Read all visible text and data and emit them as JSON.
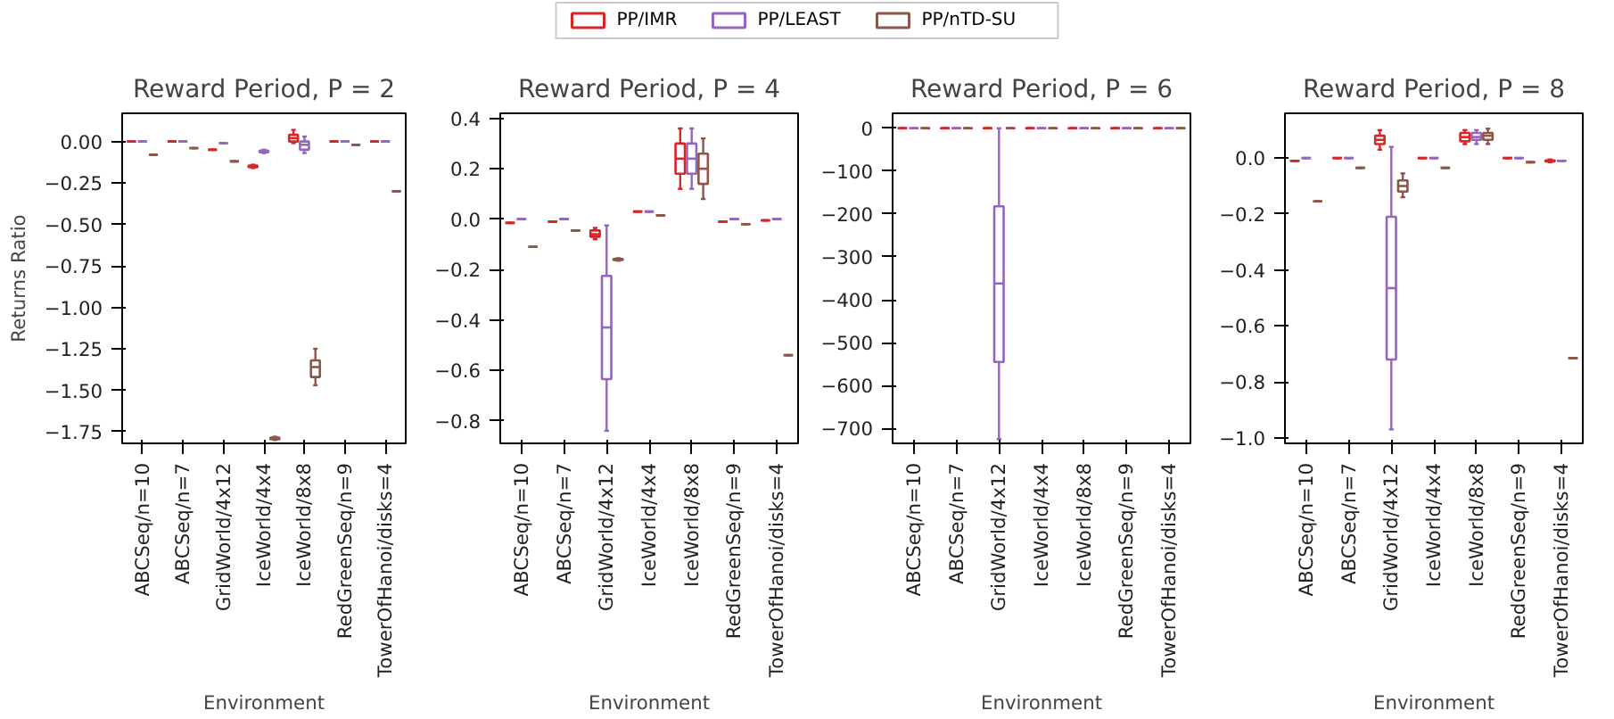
{
  "chart_data": [
    {
      "type": "box",
      "title": "Reward Period, P = 2",
      "xlabel": "Environment",
      "ylabel": "Returns Ratio",
      "legend": "top",
      "categories": [
        "ABCSeq/n=10",
        "ABCSeq/n=7",
        "GridWorld/4x12",
        "IceWorld/4x4",
        "IceWorld/8x8",
        "RedGreenSeq/n=9",
        "TowerOfHanoi/disks=4"
      ],
      "ylim": [
        -1.82,
        0.17
      ],
      "yticks": [
        {
          "value": 0,
          "label": "0.00"
        },
        {
          "value": -0.25,
          "label": "−0.25"
        },
        {
          "value": -0.5,
          "label": "−0.50"
        },
        {
          "value": -0.75,
          "label": "−0.75"
        },
        {
          "value": -1,
          "label": "−1.00"
        },
        {
          "value": -1.25,
          "label": "−1.25"
        },
        {
          "value": -1.5,
          "label": "−1.50"
        },
        {
          "value": -1.75,
          "label": "−1.75"
        }
      ],
      "series": [
        {
          "name": "PP/IMR",
          "color": "#d62728",
          "boxes": [
            {
              "low": 0,
              "q1": 0,
              "median": 0,
              "q3": 0,
              "high": 0
            },
            {
              "low": 0,
              "q1": 0,
              "median": 0,
              "q3": 0,
              "high": 0
            },
            {
              "low": -0.05,
              "q1": -0.05,
              "median": -0.05,
              "q3": -0.05,
              "high": -0.05
            },
            {
              "low": -0.16,
              "q1": -0.155,
              "median": -0.15,
              "q3": -0.145,
              "high": -0.14
            },
            {
              "low": -0.01,
              "q1": 0,
              "median": 0.02,
              "q3": 0.04,
              "high": 0.07
            },
            {
              "low": 0,
              "q1": 0,
              "median": 0,
              "q3": 0,
              "high": 0
            },
            {
              "low": 0,
              "q1": 0,
              "median": 0,
              "q3": 0,
              "high": 0
            }
          ]
        },
        {
          "name": "PP/LEAST",
          "color": "#9467bd",
          "boxes": [
            {
              "low": 0,
              "q1": 0,
              "median": 0,
              "q3": 0,
              "high": 0
            },
            {
              "low": 0,
              "q1": 0,
              "median": 0,
              "q3": 0,
              "high": 0
            },
            {
              "low": -0.01,
              "q1": -0.01,
              "median": -0.01,
              "q3": -0.01,
              "high": -0.01
            },
            {
              "low": -0.07,
              "q1": -0.065,
              "median": -0.06,
              "q3": -0.055,
              "high": -0.05
            },
            {
              "low": -0.07,
              "q1": -0.05,
              "median": -0.02,
              "q3": 0,
              "high": 0.03
            },
            {
              "low": 0,
              "q1": 0,
              "median": 0,
              "q3": 0,
              "high": 0
            },
            {
              "low": 0,
              "q1": 0,
              "median": 0,
              "q3": 0,
              "high": 0
            }
          ]
        },
        {
          "name": "PP/nTD-SU",
          "color": "#8c564b",
          "boxes": [
            {
              "low": -0.08,
              "q1": -0.08,
              "median": -0.08,
              "q3": -0.08,
              "high": -0.08
            },
            {
              "low": -0.04,
              "q1": -0.04,
              "median": -0.04,
              "q3": -0.04,
              "high": -0.04
            },
            {
              "low": -0.12,
              "q1": -0.12,
              "median": -0.12,
              "q3": -0.12,
              "high": -0.12
            },
            {
              "low": -1.8,
              "q1": -1.795,
              "median": -1.79,
              "q3": -1.785,
              "high": -1.78
            },
            {
              "low": -1.47,
              "q1": -1.42,
              "median": -1.36,
              "q3": -1.32,
              "high": -1.25
            },
            {
              "low": -0.02,
              "q1": -0.02,
              "median": -0.02,
              "q3": -0.02,
              "high": -0.02
            },
            {
              "low": -0.3,
              "q1": -0.3,
              "median": -0.3,
              "q3": -0.3,
              "high": -0.3
            }
          ]
        }
      ]
    },
    {
      "type": "box",
      "title": "Reward Period, P = 4",
      "xlabel": "Environment",
      "categories": [
        "ABCSeq/n=10",
        "ABCSeq/n=7",
        "GridWorld/4x12",
        "IceWorld/4x4",
        "IceWorld/8x8",
        "RedGreenSeq/n=9",
        "TowerOfHanoi/disks=4"
      ],
      "ylim": [
        -0.89,
        0.42
      ],
      "yticks": [
        {
          "value": 0.4,
          "label": "0.4"
        },
        {
          "value": 0.2,
          "label": "0.2"
        },
        {
          "value": 0,
          "label": "0.0"
        },
        {
          "value": -0.2,
          "label": "−0.2"
        },
        {
          "value": -0.4,
          "label": "−0.4"
        },
        {
          "value": -0.6,
          "label": "−0.6"
        },
        {
          "value": -0.8,
          "label": "−0.8"
        }
      ],
      "series": [
        {
          "name": "PP/IMR",
          "color": "#d62728",
          "boxes": [
            {
              "low": -0.015,
              "q1": -0.015,
              "median": -0.015,
              "q3": -0.015,
              "high": -0.015
            },
            {
              "low": -0.01,
              "q1": -0.01,
              "median": -0.01,
              "q3": -0.01,
              "high": -0.01
            },
            {
              "low": -0.08,
              "q1": -0.07,
              "median": -0.06,
              "q3": -0.045,
              "high": -0.035
            },
            {
              "low": 0.03,
              "q1": 0.03,
              "median": 0.03,
              "q3": 0.03,
              "high": 0.03
            },
            {
              "low": 0.12,
              "q1": 0.18,
              "median": 0.24,
              "q3": 0.3,
              "high": 0.36
            },
            {
              "low": -0.01,
              "q1": -0.01,
              "median": -0.01,
              "q3": -0.01,
              "high": -0.01
            },
            {
              "low": -0.005,
              "q1": -0.005,
              "median": -0.005,
              "q3": -0.005,
              "high": -0.005
            }
          ]
        },
        {
          "name": "PP/LEAST",
          "color": "#9467bd",
          "boxes": [
            {
              "low": 0,
              "q1": 0,
              "median": 0,
              "q3": 0,
              "high": 0
            },
            {
              "low": 0,
              "q1": 0,
              "median": 0,
              "q3": 0,
              "high": 0
            },
            {
              "low": -0.84,
              "q1": -0.635,
              "median": -0.43,
              "q3": -0.225,
              "high": -0.025
            },
            {
              "low": 0.03,
              "q1": 0.03,
              "median": 0.03,
              "q3": 0.03,
              "high": 0.03
            },
            {
              "low": 0.12,
              "q1": 0.18,
              "median": 0.24,
              "q3": 0.3,
              "high": 0.36
            },
            {
              "low": 0,
              "q1": 0,
              "median": 0,
              "q3": 0,
              "high": 0
            },
            {
              "low": 0,
              "q1": 0,
              "median": 0,
              "q3": 0,
              "high": 0
            }
          ]
        },
        {
          "name": "PP/nTD-SU",
          "color": "#8c564b",
          "boxes": [
            {
              "low": -0.11,
              "q1": -0.11,
              "median": -0.11,
              "q3": -0.11,
              "high": -0.11
            },
            {
              "low": -0.045,
              "q1": -0.045,
              "median": -0.045,
              "q3": -0.045,
              "high": -0.045
            },
            {
              "low": -0.165,
              "q1": -0.162,
              "median": -0.16,
              "q3": -0.158,
              "high": -0.155
            },
            {
              "low": 0.015,
              "q1": 0.015,
              "median": 0.015,
              "q3": 0.015,
              "high": 0.015
            },
            {
              "low": 0.08,
              "q1": 0.14,
              "median": 0.2,
              "q3": 0.26,
              "high": 0.32
            },
            {
              "low": -0.02,
              "q1": -0.02,
              "median": -0.02,
              "q3": -0.02,
              "high": -0.02
            },
            {
              "low": -0.54,
              "q1": -0.54,
              "median": -0.54,
              "q3": -0.54,
              "high": -0.54
            }
          ]
        }
      ]
    },
    {
      "type": "box",
      "title": "Reward Period, P = 6",
      "xlabel": "Environment",
      "categories": [
        "ABCSeq/n=10",
        "ABCSeq/n=7",
        "GridWorld/4x12",
        "IceWorld/4x4",
        "IceWorld/8x8",
        "RedGreenSeq/n=9",
        "TowerOfHanoi/disks=4"
      ],
      "ylim": [
        -735,
        35
      ],
      "yticks": [
        {
          "value": 0,
          "label": "0"
        },
        {
          "value": -100,
          "label": "−100"
        },
        {
          "value": -200,
          "label": "−200"
        },
        {
          "value": -300,
          "label": "−300"
        },
        {
          "value": -400,
          "label": "−400"
        },
        {
          "value": -500,
          "label": "−500"
        },
        {
          "value": -600,
          "label": "−600"
        },
        {
          "value": -700,
          "label": "−700"
        }
      ],
      "series": [
        {
          "name": "PP/IMR",
          "color": "#d62728",
          "boxes": [
            {
              "low": 0,
              "q1": 0,
              "median": 0,
              "q3": 0,
              "high": 0
            },
            {
              "low": 0,
              "q1": 0,
              "median": 0,
              "q3": 0,
              "high": 0
            },
            {
              "low": 0,
              "q1": 0,
              "median": 0,
              "q3": 0,
              "high": 0
            },
            {
              "low": 0,
              "q1": 0,
              "median": 0,
              "q3": 0,
              "high": 0
            },
            {
              "low": 0,
              "q1": 0,
              "median": 0,
              "q3": 0,
              "high": 0
            },
            {
              "low": 0,
              "q1": 0,
              "median": 0,
              "q3": 0,
              "high": 0
            },
            {
              "low": 0,
              "q1": 0,
              "median": 0,
              "q3": 0,
              "high": 0
            }
          ]
        },
        {
          "name": "PP/LEAST",
          "color": "#9467bd",
          "boxes": [
            {
              "low": 0,
              "q1": 0,
              "median": 0,
              "q3": 0,
              "high": 0
            },
            {
              "low": 0,
              "q1": 0,
              "median": 0,
              "q3": 0,
              "high": 0
            },
            {
              "low": -725,
              "q1": -545,
              "median": -362,
              "q3": -182,
              "high": 0
            },
            {
              "low": 0,
              "q1": 0,
              "median": 0,
              "q3": 0,
              "high": 0
            },
            {
              "low": 0,
              "q1": 0,
              "median": 0,
              "q3": 0,
              "high": 0
            },
            {
              "low": 0,
              "q1": 0,
              "median": 0,
              "q3": 0,
              "high": 0
            },
            {
              "low": 0,
              "q1": 0,
              "median": 0,
              "q3": 0,
              "high": 0
            }
          ]
        },
        {
          "name": "PP/nTD-SU",
          "color": "#8c564b",
          "boxes": [
            {
              "low": 0,
              "q1": 0,
              "median": 0,
              "q3": 0,
              "high": 0
            },
            {
              "low": 0,
              "q1": 0,
              "median": 0,
              "q3": 0,
              "high": 0
            },
            {
              "low": 0,
              "q1": 0,
              "median": 0,
              "q3": 0,
              "high": 0
            },
            {
              "low": 0,
              "q1": 0,
              "median": 0,
              "q3": 0,
              "high": 0
            },
            {
              "low": 0,
              "q1": 0,
              "median": 0,
              "q3": 0,
              "high": 0
            },
            {
              "low": 0,
              "q1": 0,
              "median": 0,
              "q3": 0,
              "high": 0
            },
            {
              "low": 0,
              "q1": 0,
              "median": 0,
              "q3": 0,
              "high": 0
            }
          ]
        }
      ]
    },
    {
      "type": "box",
      "title": "Reward Period, P = 8",
      "xlabel": "Environment",
      "categories": [
        "ABCSeq/n=10",
        "ABCSeq/n=7",
        "GridWorld/4x12",
        "IceWorld/4x4",
        "IceWorld/8x8",
        "RedGreenSeq/n=9",
        "TowerOfHanoi/disks=4"
      ],
      "ylim": [
        -1.02,
        0.16
      ],
      "yticks": [
        {
          "value": 0,
          "label": "0.0"
        },
        {
          "value": -0.2,
          "label": "−0.2"
        },
        {
          "value": -0.4,
          "label": "−0.4"
        },
        {
          "value": -0.6,
          "label": "−0.6"
        },
        {
          "value": -0.8,
          "label": "−0.8"
        },
        {
          "value": -1,
          "label": "−1.0"
        }
      ],
      "series": [
        {
          "name": "PP/IMR",
          "color": "#d62728",
          "boxes": [
            {
              "low": -0.01,
              "q1": -0.01,
              "median": -0.01,
              "q3": -0.01,
              "high": -0.01
            },
            {
              "low": 0,
              "q1": 0,
              "median": 0,
              "q3": 0,
              "high": 0
            },
            {
              "low": 0.03,
              "q1": 0.05,
              "median": 0.065,
              "q3": 0.08,
              "high": 0.1
            },
            {
              "low": 0,
              "q1": 0,
              "median": 0,
              "q3": 0,
              "high": 0
            },
            {
              "low": 0.05,
              "q1": 0.06,
              "median": 0.075,
              "q3": 0.09,
              "high": 0.1
            },
            {
              "low": 0,
              "q1": 0,
              "median": 0,
              "q3": 0,
              "high": 0
            },
            {
              "low": -0.015,
              "q1": -0.012,
              "median": -0.01,
              "q3": -0.008,
              "high": -0.005
            }
          ]
        },
        {
          "name": "PP/LEAST",
          "color": "#9467bd",
          "boxes": [
            {
              "low": 0,
              "q1": 0,
              "median": 0,
              "q3": 0,
              "high": 0
            },
            {
              "low": 0,
              "q1": 0,
              "median": 0,
              "q3": 0,
              "high": 0
            },
            {
              "low": -0.97,
              "q1": -0.72,
              "median": -0.465,
              "q3": -0.21,
              "high": 0.04
            },
            {
              "low": 0,
              "q1": 0,
              "median": 0,
              "q3": 0,
              "high": 0
            },
            {
              "low": 0.05,
              "q1": 0.065,
              "median": 0.075,
              "q3": 0.09,
              "high": 0.1
            },
            {
              "low": 0,
              "q1": 0,
              "median": 0,
              "q3": 0,
              "high": 0
            },
            {
              "low": -0.01,
              "q1": -0.01,
              "median": -0.01,
              "q3": -0.01,
              "high": -0.01
            }
          ]
        },
        {
          "name": "PP/nTD-SU",
          "color": "#8c564b",
          "boxes": [
            {
              "low": -0.155,
              "q1": -0.155,
              "median": -0.155,
              "q3": -0.155,
              "high": -0.155
            },
            {
              "low": -0.035,
              "q1": -0.035,
              "median": -0.035,
              "q3": -0.035,
              "high": -0.035
            },
            {
              "low": -0.14,
              "q1": -0.12,
              "median": -0.1,
              "q3": -0.08,
              "high": -0.055
            },
            {
              "low": -0.035,
              "q1": -0.035,
              "median": -0.035,
              "q3": -0.035,
              "high": -0.035
            },
            {
              "low": 0.05,
              "q1": 0.065,
              "median": 0.08,
              "q3": 0.09,
              "high": 0.105
            },
            {
              "low": -0.015,
              "q1": -0.015,
              "median": -0.015,
              "q3": -0.015,
              "high": -0.015
            },
            {
              "low": -0.715,
              "q1": -0.715,
              "median": -0.715,
              "q3": -0.715,
              "high": -0.715
            }
          ]
        }
      ]
    }
  ]
}
